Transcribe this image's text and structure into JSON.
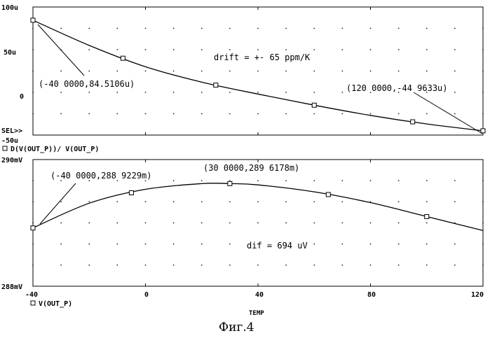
{
  "caption": "Фиг.4",
  "x_axis": {
    "label": "TEMP",
    "ticks": [
      -40,
      0,
      40,
      80,
      120
    ],
    "tick_labels": [
      "-40",
      "0",
      "40",
      "80",
      "120"
    ],
    "range": [
      -40,
      120
    ]
  },
  "chart_data": [
    {
      "type": "line",
      "marker": "square",
      "selected_label": "SEL>>",
      "legend": "D(V(OUT_P))/ V(OUT_P)",
      "ylim": [
        -50,
        100
      ],
      "yticks": [
        -50,
        0,
        50,
        100
      ],
      "ytick_labels": [
        "-50u",
        "0",
        "50u",
        "100u"
      ],
      "grid": "dotted",
      "series": [
        {
          "name": "D(V(OUT_P))/ V(OUT_P)",
          "x": [
            -40,
            -20,
            0,
            20,
            40,
            60,
            80,
            100,
            120
          ],
          "y": [
            84.5,
            55,
            30,
            12,
            -2,
            -15,
            -27,
            -37,
            -45
          ]
        }
      ],
      "markers_x": [
        -40,
        -8,
        25,
        60,
        95,
        120
      ],
      "annotations": [
        {
          "text": "(-40 0000,84.5106u)",
          "x": -40,
          "y": 84.5
        },
        {
          "text": "(120 0000,-44 9633u)",
          "x": 120,
          "y": -45
        },
        {
          "text": "drift = +- 65 ppm/K"
        }
      ]
    },
    {
      "type": "line",
      "marker": "square",
      "legend": "V(OUT_P)",
      "ylim": [
        288,
        290
      ],
      "yticks": [
        288,
        290
      ],
      "ytick_labels": [
        "288mV",
        "290mV"
      ],
      "grid": "dotted",
      "series": [
        {
          "name": "V(OUT_P)",
          "x": [
            -40,
            -20,
            0,
            20,
            30,
            40,
            60,
            80,
            100,
            120
          ],
          "y": [
            288.92,
            289.31,
            289.53,
            289.62,
            289.62,
            289.6,
            289.49,
            289.32,
            289.1,
            288.88
          ]
        }
      ],
      "markers_x": [
        -40,
        -5,
        30,
        65,
        100
      ],
      "annotations": [
        {
          "text": "(-40 0000,288 9229m)",
          "x": -40,
          "y": 288.92
        },
        {
          "text": "(30 0000,289 6178m)",
          "x": 30,
          "y": 289.62
        },
        {
          "text": "dif = 694 uV"
        }
      ]
    }
  ]
}
